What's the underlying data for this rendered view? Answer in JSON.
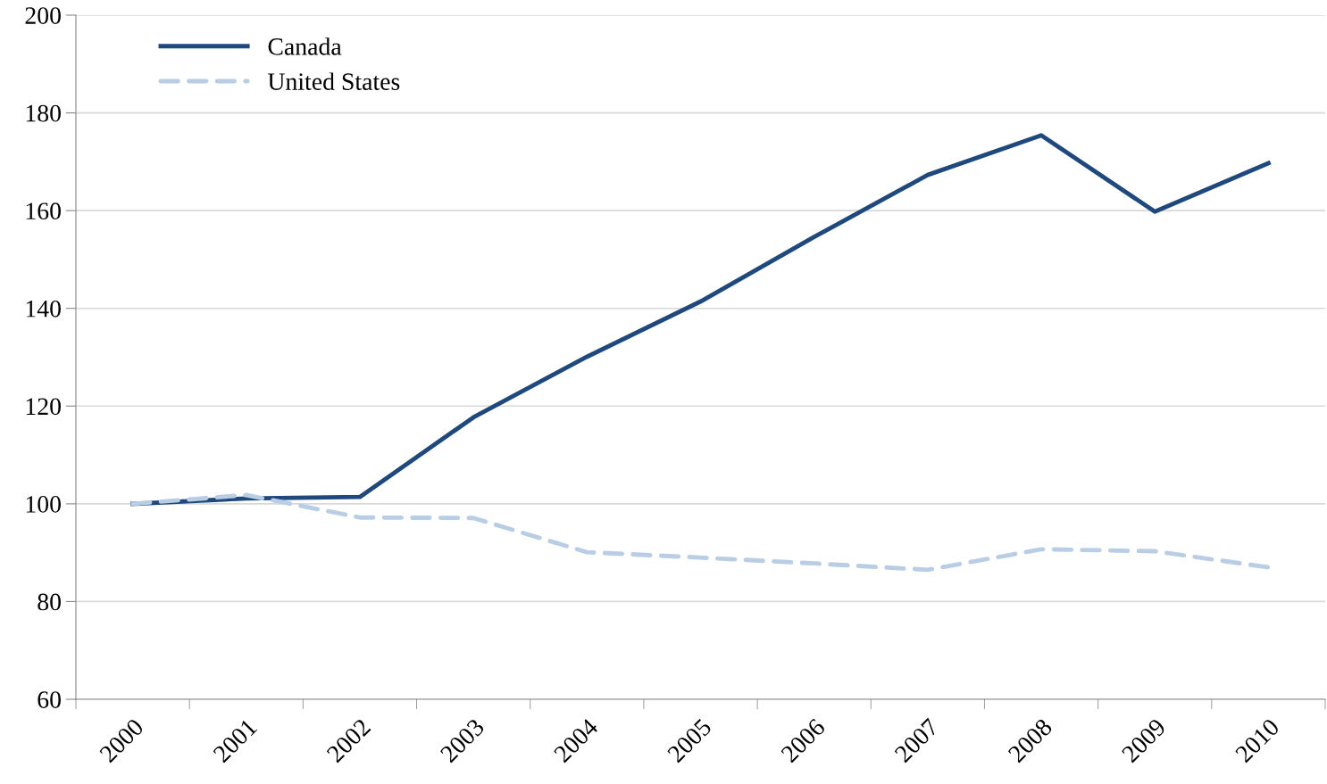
{
  "chart_data": {
    "type": "line",
    "categories": [
      "2000",
      "2001",
      "2002",
      "2003",
      "2004",
      "2005",
      "2006",
      "2007",
      "2008",
      "2009",
      "2010"
    ],
    "series": [
      {
        "name": "Canada",
        "color": "#1f497d",
        "line_style": "solid",
        "values": [
          100,
          101.1,
          101.4,
          117.7,
          130.1,
          141.4,
          154.6,
          167.3,
          175.4,
          159.8,
          169.7
        ]
      },
      {
        "name": "United States",
        "color": "#b9cde5",
        "line_style": "dashed",
        "values": [
          100,
          101.8,
          97.2,
          97.1,
          90.1,
          89.0,
          87.8,
          86.5,
          90.7,
          90.3,
          87.0
        ]
      }
    ],
    "ylim": [
      60,
      200
    ],
    "yticks": [
      60,
      80,
      100,
      120,
      140,
      160,
      180,
      200
    ],
    "grid": "y",
    "legend": "top left",
    "marker": "none"
  }
}
